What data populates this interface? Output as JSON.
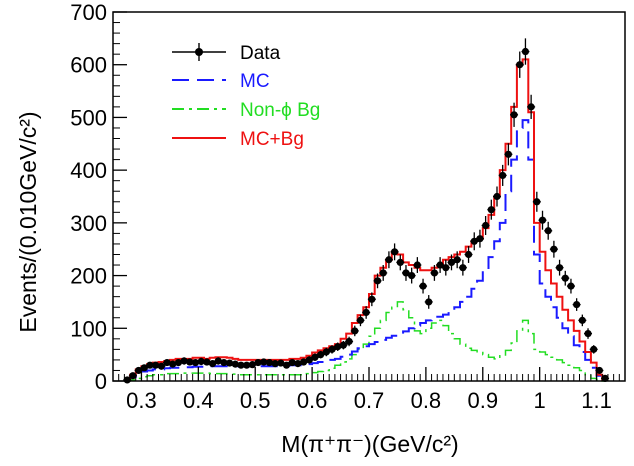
{
  "chart_data": {
    "type": "line",
    "title": "",
    "xlabel": "M(π⁺π⁻)(GeV/c²)",
    "ylabel": "Events/(0.010GeV/c²)",
    "xlim": [
      0.25,
      1.15
    ],
    "ylim": [
      0,
      700
    ],
    "xticks": [
      0.3,
      0.4,
      0.5,
      0.6,
      0.7,
      0.8,
      0.9,
      1.0,
      1.1
    ],
    "xtick_labels": [
      "0.3",
      "0.4",
      "0.5",
      "0.6",
      "0.7",
      "0.8",
      "0.9",
      "1",
      "1.1"
    ],
    "yticks": [
      0,
      100,
      200,
      300,
      400,
      500,
      600,
      700
    ],
    "ytick_labels": [
      "0",
      "100",
      "200",
      "300",
      "400",
      "500",
      "600",
      "700"
    ],
    "legend_position": "top-left",
    "legend": [
      {
        "label": "Data",
        "color": "#000000",
        "style": "marker"
      },
      {
        "label": "MC",
        "color": "#1a1aff",
        "style": "dashed"
      },
      {
        "label": "Non-ϕ Bg",
        "color": "#22dd22",
        "style": "dashdot"
      },
      {
        "label": "MC+Bg",
        "color": "#ee1111",
        "style": "solid"
      }
    ],
    "bin_edges": [
      0.27,
      0.28,
      0.29,
      0.3,
      0.31,
      0.32,
      0.33,
      0.34,
      0.35,
      0.36,
      0.37,
      0.38,
      0.39,
      0.4,
      0.41,
      0.42,
      0.43,
      0.44,
      0.45,
      0.46,
      0.47,
      0.48,
      0.49,
      0.5,
      0.51,
      0.52,
      0.53,
      0.54,
      0.55,
      0.56,
      0.57,
      0.58,
      0.59,
      0.6,
      0.61,
      0.62,
      0.63,
      0.64,
      0.65,
      0.66,
      0.67,
      0.68,
      0.69,
      0.7,
      0.71,
      0.72,
      0.73,
      0.74,
      0.75,
      0.76,
      0.77,
      0.78,
      0.79,
      0.8,
      0.81,
      0.82,
      0.83,
      0.84,
      0.85,
      0.86,
      0.87,
      0.88,
      0.89,
      0.9,
      0.91,
      0.92,
      0.93,
      0.94,
      0.95,
      0.96,
      0.97,
      0.98,
      0.99,
      1.0,
      1.01,
      1.02,
      1.03,
      1.04,
      1.05,
      1.06,
      1.07,
      1.08,
      1.09,
      1.1,
      1.11,
      1.12
    ],
    "series": [
      {
        "name": "Data",
        "type": "points",
        "color": "#000000",
        "x": [
          0.275,
          0.285,
          0.295,
          0.305,
          0.315,
          0.325,
          0.335,
          0.345,
          0.355,
          0.365,
          0.375,
          0.385,
          0.395,
          0.405,
          0.415,
          0.425,
          0.435,
          0.445,
          0.455,
          0.465,
          0.475,
          0.485,
          0.495,
          0.505,
          0.515,
          0.525,
          0.535,
          0.545,
          0.555,
          0.565,
          0.575,
          0.585,
          0.595,
          0.605,
          0.615,
          0.625,
          0.635,
          0.645,
          0.655,
          0.665,
          0.675,
          0.685,
          0.695,
          0.705,
          0.715,
          0.725,
          0.735,
          0.745,
          0.755,
          0.765,
          0.775,
          0.785,
          0.795,
          0.805,
          0.815,
          0.825,
          0.835,
          0.845,
          0.855,
          0.865,
          0.875,
          0.885,
          0.895,
          0.905,
          0.915,
          0.925,
          0.935,
          0.945,
          0.955,
          0.965,
          0.975,
          0.985,
          0.995,
          1.005,
          1.015,
          1.025,
          1.035,
          1.045,
          1.055,
          1.065,
          1.075,
          1.085,
          1.095,
          1.105,
          1.115
        ],
        "y": [
          2,
          10,
          20,
          25,
          30,
          30,
          28,
          35,
          32,
          35,
          38,
          36,
          35,
          37,
          36,
          33,
          38,
          35,
          34,
          32,
          30,
          30,
          31,
          35,
          36,
          35,
          33,
          34,
          30,
          35,
          33,
          36,
          40,
          45,
          50,
          55,
          60,
          65,
          68,
          75,
          95,
          115,
          130,
          155,
          190,
          205,
          230,
          245,
          225,
          205,
          200,
          220,
          180,
          150,
          205,
          220,
          215,
          225,
          230,
          215,
          240,
          265,
          270,
          295,
          325,
          350,
          390,
          430,
          505,
          600,
          625,
          520,
          340,
          305,
          285,
          250,
          215,
          195,
          180,
          145,
          115,
          90,
          60,
          20,
          5
        ],
        "yerr": [
          2,
          3,
          5,
          5,
          6,
          6,
          6,
          6,
          6,
          6,
          7,
          6,
          6,
          7,
          6,
          6,
          7,
          6,
          6,
          6,
          6,
          6,
          6,
          6,
          6,
          6,
          6,
          6,
          6,
          6,
          6,
          6,
          7,
          7,
          7,
          8,
          8,
          8,
          8,
          9,
          10,
          11,
          12,
          13,
          14,
          15,
          16,
          16,
          15,
          15,
          15,
          15,
          14,
          13,
          15,
          15,
          15,
          15,
          16,
          15,
          16,
          17,
          17,
          18,
          19,
          19,
          20,
          21,
          23,
          25,
          25,
          23,
          19,
          18,
          17,
          16,
          15,
          14,
          14,
          12,
          11,
          10,
          8,
          5,
          3
        ]
      },
      {
        "name": "MC",
        "type": "step",
        "color": "#1a1aff",
        "values": [
          2,
          8,
          14,
          18,
          20,
          22,
          22,
          24,
          25,
          25,
          26,
          26,
          27,
          27,
          27,
          28,
          28,
          28,
          28,
          28,
          28,
          28,
          28,
          28,
          28,
          28,
          28,
          29,
          29,
          30,
          30,
          31,
          32,
          34,
          36,
          38,
          40,
          42,
          46,
          50,
          56,
          62,
          66,
          70,
          74,
          78,
          82,
          86,
          90,
          94,
          100,
          105,
          110,
          115,
          118,
          122,
          126,
          132,
          140,
          150,
          160,
          175,
          190,
          210,
          235,
          265,
          300,
          360,
          420,
          480,
          495,
          420,
          240,
          185,
          160,
          140,
          120,
          100,
          85,
          68,
          55,
          40,
          25,
          10,
          2
        ]
      },
      {
        "name": "Non-ϕ Bg",
        "type": "step",
        "color": "#22dd22",
        "values": [
          0,
          2,
          5,
          8,
          10,
          12,
          12,
          14,
          14,
          14,
          15,
          15,
          15,
          15,
          15,
          14,
          14,
          14,
          13,
          13,
          12,
          12,
          12,
          12,
          12,
          12,
          12,
          12,
          12,
          12,
          12,
          12,
          14,
          16,
          18,
          20,
          24,
          30,
          36,
          42,
          50,
          60,
          70,
          85,
          100,
          115,
          130,
          140,
          150,
          135,
          120,
          95,
          90,
          100,
          110,
          115,
          105,
          90,
          80,
          70,
          62,
          58,
          54,
          50,
          45,
          42,
          48,
          58,
          72,
          95,
          115,
          90,
          60,
          55,
          50,
          45,
          40,
          35,
          30,
          25,
          20,
          12,
          5,
          2,
          0
        ]
      },
      {
        "name": "MC+Bg",
        "type": "step",
        "color": "#ee1111",
        "values": [
          2,
          12,
          22,
          28,
          32,
          35,
          36,
          38,
          40,
          42,
          42,
          42,
          44,
          44,
          42,
          44,
          45,
          45,
          44,
          42,
          40,
          40,
          40,
          40,
          40,
          40,
          40,
          40,
          40,
          42,
          42,
          44,
          48,
          54,
          58,
          62,
          66,
          70,
          80,
          90,
          110,
          125,
          140,
          165,
          200,
          215,
          230,
          245,
          240,
          225,
          220,
          215,
          210,
          210,
          215,
          220,
          230,
          235,
          240,
          245,
          255,
          265,
          270,
          290,
          315,
          350,
          400,
          450,
          520,
          600,
          610,
          510,
          300,
          245,
          210,
          185,
          160,
          135,
          115,
          95,
          75,
          55,
          35,
          12,
          2
        ]
      }
    ]
  }
}
